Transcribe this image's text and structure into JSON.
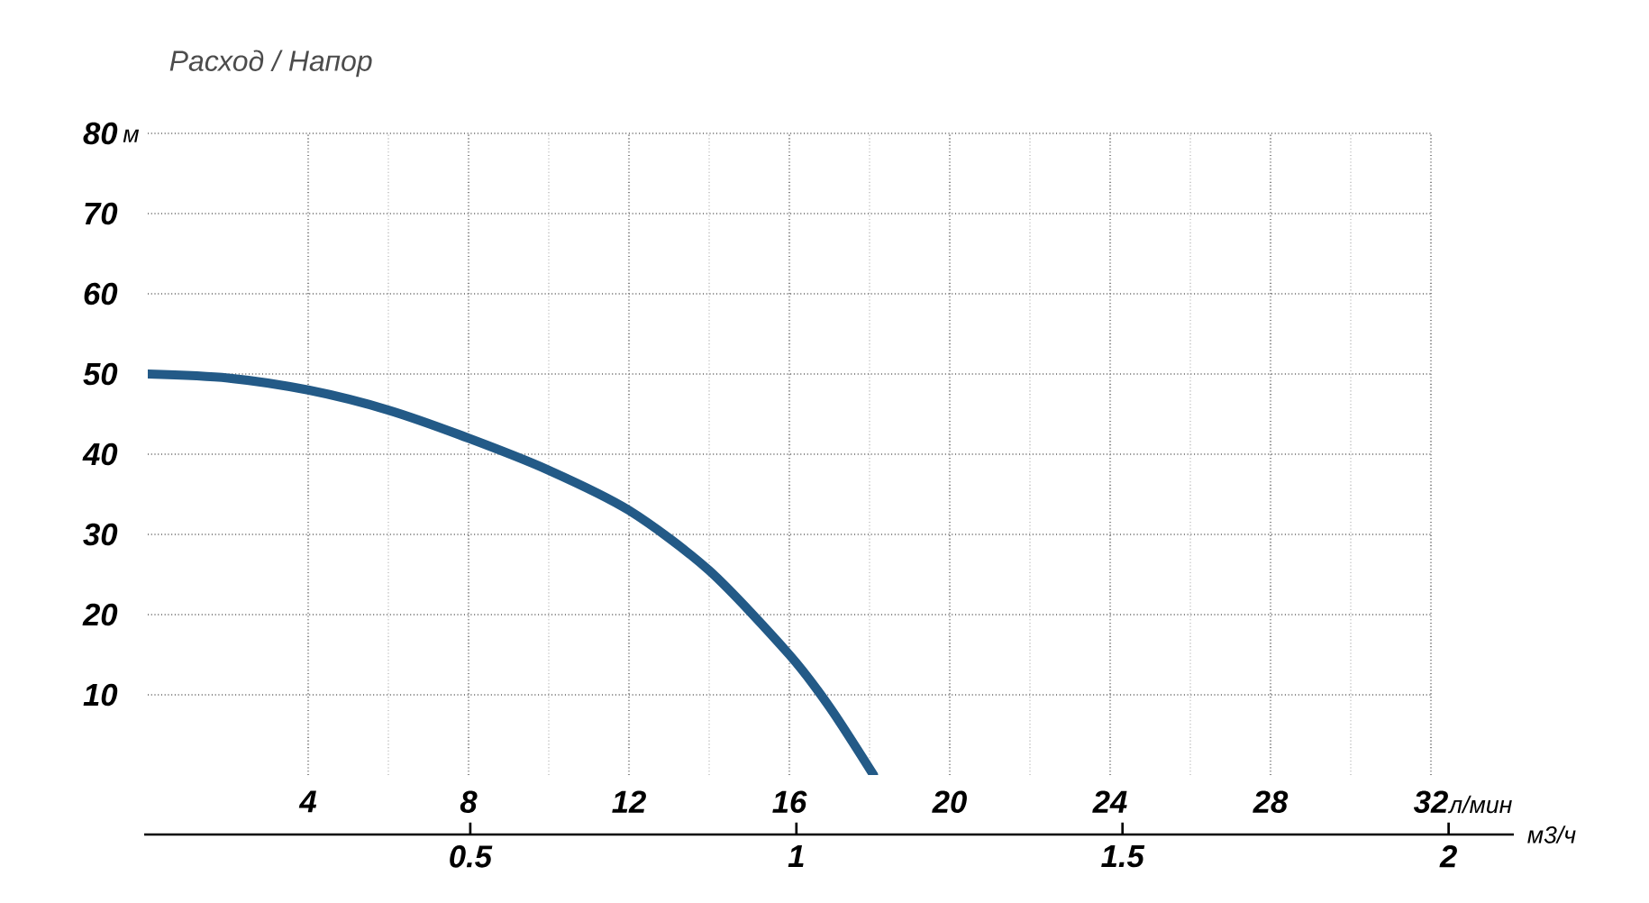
{
  "chart_data": {
    "type": "line",
    "title": "Расход / Напор",
    "xlabel": "л/мин",
    "ylabel": "м",
    "x2label": "м3/ч",
    "xlim": [
      0,
      32
    ],
    "xticks": [
      4,
      8,
      12,
      16,
      20,
      24,
      28,
      32
    ],
    "ylim": [
      0,
      80
    ],
    "yticks": [
      10,
      20,
      30,
      40,
      50,
      60,
      70,
      80
    ],
    "x2lim": [
      0,
      2.1
    ],
    "x2ticks": [
      0.5,
      1,
      1.5,
      2
    ],
    "grid": true,
    "marker": "none",
    "line_style": "solid",
    "x": [
      0,
      2,
      4,
      6,
      8,
      10,
      12,
      14,
      16,
      17,
      18.1
    ],
    "series": [
      {
        "color": "#235a87",
        "values": [
          50,
          49.5,
          48,
          45.5,
          42,
          38,
          33,
          25.5,
          15,
          8.5,
          0
        ]
      }
    ]
  }
}
